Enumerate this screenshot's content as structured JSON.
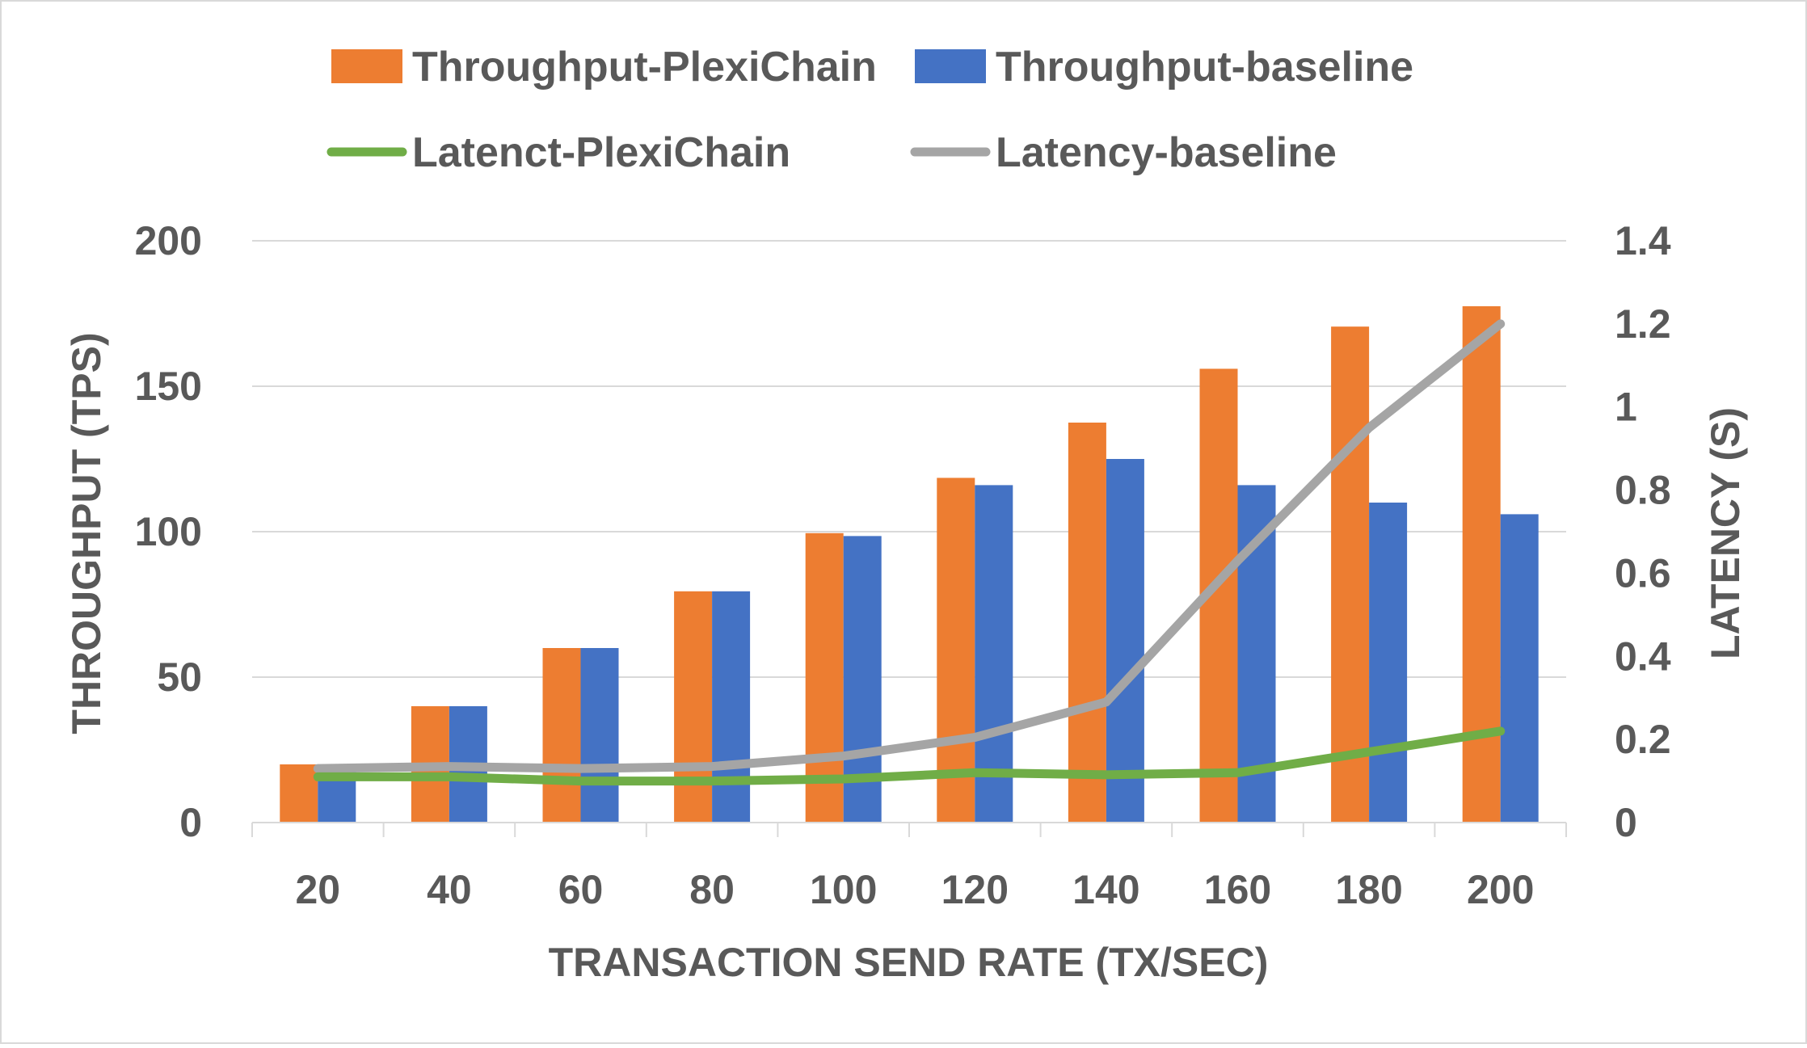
{
  "chart_data": {
    "type": "bar+line",
    "categories": [
      "20",
      "40",
      "60",
      "80",
      "100",
      "120",
      "140",
      "160",
      "180",
      "200"
    ],
    "bar_series": [
      {
        "name": "Throughput-PlexiChain",
        "color": "#ED7D31",
        "values": [
          20,
          40,
          60,
          79.5,
          99.5,
          118.5,
          137.5,
          156,
          170.5,
          177.5
        ]
      },
      {
        "name": "Throughput-baseline",
        "color": "#4472C4",
        "values": [
          20,
          40,
          60,
          79.5,
          98.5,
          116,
          125,
          116,
          110,
          106
        ]
      }
    ],
    "line_series": [
      {
        "name": "Latenct-PlexiChain",
        "color": "#70AD47",
        "values": [
          0.11,
          0.11,
          0.1,
          0.1,
          0.105,
          0.12,
          0.115,
          0.12,
          0.17,
          0.22
        ]
      },
      {
        "name": "Latency-baseline",
        "color": "#A5A5A5",
        "values": [
          0.13,
          0.135,
          0.13,
          0.135,
          0.16,
          0.205,
          0.29,
          0.63,
          0.95,
          1.2
        ]
      }
    ],
    "xlabel": "TRANSACTION SEND RATE (TX/SEC)",
    "ylabel_left": "THROUGHPUT (TPS)",
    "ylabel_right": "LATENCY (S)",
    "ylim_left": [
      0,
      200
    ],
    "ylim_right": [
      0,
      1.4
    ],
    "yticks_left": [
      "0",
      "50",
      "100",
      "150",
      "200"
    ],
    "yticks_right": [
      "0",
      "0.2",
      "0.4",
      "0.6",
      "0.8",
      "1",
      "1.2",
      "1.4"
    ],
    "legend": "top",
    "grid": true
  }
}
